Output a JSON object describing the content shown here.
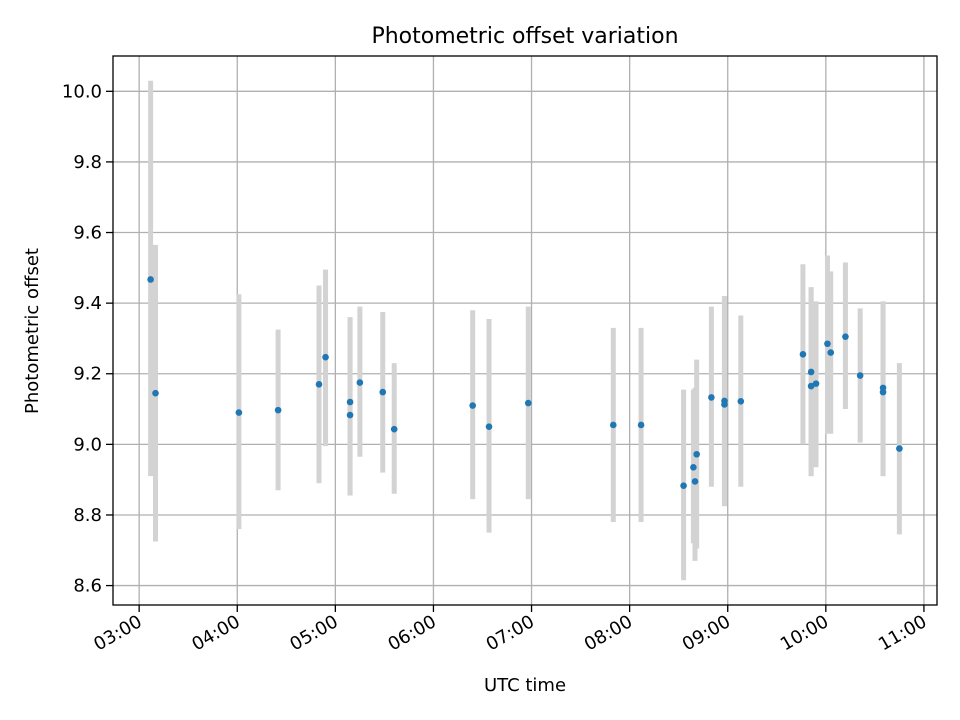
{
  "chart_data": {
    "type": "scatter",
    "title": "Photometric offset variation",
    "xlabel": "UTC time",
    "ylabel": "Photometric offset",
    "x_ticks": [
      "03:00",
      "04:00",
      "05:00",
      "06:00",
      "07:00",
      "08:00",
      "09:00",
      "10:00",
      "11:00"
    ],
    "y_ticks": [
      "8.6",
      "8.8",
      "9.0",
      "9.2",
      "9.4",
      "9.6",
      "9.8",
      "10.0"
    ],
    "xlim": [
      "02:44",
      "11:08"
    ],
    "ylim": [
      8.545,
      10.1
    ],
    "grid": true,
    "colors": {
      "point": "#1f77b4",
      "errorbar": "#d3d3d3",
      "grid": "#b0b0b0"
    },
    "points": [
      {
        "x": "03:07",
        "y": 9.467,
        "ylow": 8.91,
        "yhigh": 10.03
      },
      {
        "x": "03:10",
        "y": 9.145,
        "ylow": 8.725,
        "yhigh": 9.565
      },
      {
        "x": "04:01",
        "y": 9.09,
        "ylow": 8.76,
        "yhigh": 9.425
      },
      {
        "x": "04:25",
        "y": 9.097,
        "ylow": 8.87,
        "yhigh": 9.325
      },
      {
        "x": "04:50",
        "y": 9.17,
        "ylow": 8.89,
        "yhigh": 9.45
      },
      {
        "x": "04:54",
        "y": 9.247,
        "ylow": 8.995,
        "yhigh": 9.495
      },
      {
        "x": "05:09",
        "y": 9.12,
        "ylow": 8.855,
        "yhigh": 9.36
      },
      {
        "x": "05:09",
        "y": 9.083,
        "ylow": 8.855,
        "yhigh": 9.36
      },
      {
        "x": "05:15",
        "y": 9.175,
        "ylow": 8.965,
        "yhigh": 9.39
      },
      {
        "x": "05:29",
        "y": 9.148,
        "ylow": 8.92,
        "yhigh": 9.375
      },
      {
        "x": "05:36",
        "y": 9.043,
        "ylow": 8.86,
        "yhigh": 9.23
      },
      {
        "x": "06:24",
        "y": 9.11,
        "ylow": 8.845,
        "yhigh": 9.38
      },
      {
        "x": "06:34",
        "y": 9.05,
        "ylow": 8.75,
        "yhigh": 9.355
      },
      {
        "x": "06:58",
        "y": 9.117,
        "ylow": 8.845,
        "yhigh": 9.39
      },
      {
        "x": "07:50",
        "y": 9.055,
        "ylow": 8.78,
        "yhigh": 9.33
      },
      {
        "x": "08:07",
        "y": 9.055,
        "ylow": 8.78,
        "yhigh": 9.33
      },
      {
        "x": "08:33",
        "y": 8.883,
        "ylow": 8.615,
        "yhigh": 9.155
      },
      {
        "x": "08:39",
        "y": 8.935,
        "ylow": 8.72,
        "yhigh": 9.155
      },
      {
        "x": "08:40",
        "y": 8.895,
        "ylow": 8.67,
        "yhigh": 9.16
      },
      {
        "x": "08:41",
        "y": 8.972,
        "ylow": 8.705,
        "yhigh": 9.24
      },
      {
        "x": "08:50",
        "y": 9.133,
        "ylow": 8.88,
        "yhigh": 9.39
      },
      {
        "x": "08:58",
        "y": 9.113,
        "ylow": 8.825,
        "yhigh": 9.42
      },
      {
        "x": "08:58",
        "y": 9.123,
        "ylow": 8.825,
        "yhigh": 9.42
      },
      {
        "x": "09:08",
        "y": 9.122,
        "ylow": 8.88,
        "yhigh": 9.365
      },
      {
        "x": "09:46",
        "y": 9.255,
        "ylow": 9.0,
        "yhigh": 9.51
      },
      {
        "x": "09:51",
        "y": 9.205,
        "ylow": 8.91,
        "yhigh": 9.445
      },
      {
        "x": "09:51",
        "y": 9.165,
        "ylow": 8.91,
        "yhigh": 9.445
      },
      {
        "x": "09:54",
        "y": 9.172,
        "ylow": 8.935,
        "yhigh": 9.405
      },
      {
        "x": "10:01",
        "y": 9.285,
        "ylow": 9.03,
        "yhigh": 9.535
      },
      {
        "x": "10:03",
        "y": 9.26,
        "ylow": 9.03,
        "yhigh": 9.49
      },
      {
        "x": "10:12",
        "y": 9.305,
        "ylow": 9.1,
        "yhigh": 9.515
      },
      {
        "x": "10:21",
        "y": 9.195,
        "ylow": 9.005,
        "yhigh": 9.385
      },
      {
        "x": "10:35",
        "y": 9.148,
        "ylow": 8.91,
        "yhigh": 9.405
      },
      {
        "x": "10:35",
        "y": 9.16,
        "ylow": 8.91,
        "yhigh": 9.405
      },
      {
        "x": "10:45",
        "y": 8.988,
        "ylow": 8.745,
        "yhigh": 9.23
      }
    ]
  }
}
